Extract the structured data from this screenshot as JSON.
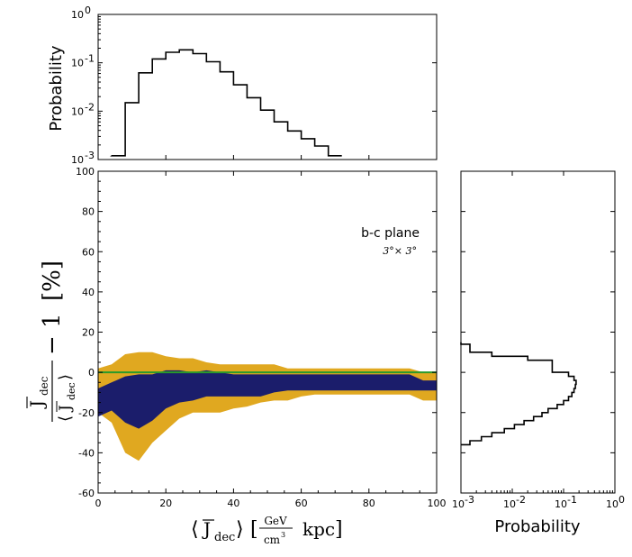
{
  "chart_data": [
    {
      "type": "histogram",
      "name": "top-histogram",
      "ylabel": "Probability",
      "yscale": "log",
      "xlim": [
        0,
        100
      ],
      "ylim": [
        0.001,
        1
      ],
      "ytick_labels": [
        {
          "base": "10",
          "exp": "-3",
          "value": 0.001
        },
        {
          "base": "10",
          "exp": "-2",
          "value": 0.01
        },
        {
          "base": "10",
          "exp": "-1",
          "value": 0.1
        },
        {
          "base": "10",
          "exp": "0",
          "value": 1
        }
      ],
      "bin_edges": [
        4,
        8,
        12,
        16,
        20,
        24,
        28,
        32,
        36,
        40,
        44,
        48,
        52,
        56,
        60,
        64,
        68,
        72
      ],
      "values": [
        0.0012,
        0.015,
        0.062,
        0.12,
        0.165,
        0.185,
        0.155,
        0.105,
        0.065,
        0.035,
        0.019,
        0.0105,
        0.006,
        0.0039,
        0.0027,
        0.0019,
        0.0012
      ]
    },
    {
      "type": "area",
      "name": "main-bands",
      "xlim": [
        0,
        100
      ],
      "ylim": [
        -60,
        100
      ],
      "xticks": [
        0,
        20,
        40,
        60,
        80,
        100
      ],
      "yticks": [
        -60,
        -40,
        -20,
        0,
        20,
        40,
        60,
        80,
        100
      ],
      "annotation": "b-c plane",
      "annotation_sub": "3°× 3°",
      "xlabel_parts": {
        "bracket_open": "⟨",
        "J": "J",
        "sub": "dec",
        "bracket_close": "⟩",
        "unit_num": "GeV",
        "unit_den": "cm",
        "unit_den_exp": "3",
        "unit": "kpc"
      },
      "ylabel_parts": {
        "J": "J",
        "sub": "dec",
        "minus_one": "− 1",
        "percent": "[%]"
      },
      "colors": {
        "outer": "#e0a820",
        "inner": "#1b1d6b",
        "line": "#2a9a2a",
        "mid": "#1d5a48"
      },
      "outer_band": {
        "x": [
          0,
          4,
          8,
          12,
          16,
          20,
          24,
          28,
          32,
          36,
          40,
          44,
          48,
          52,
          56,
          60,
          64,
          68,
          72,
          76,
          80,
          84,
          88,
          92,
          96,
          100
        ],
        "upper": [
          2,
          4,
          9,
          10,
          10,
          8,
          7,
          7,
          5,
          4,
          4,
          4,
          4,
          4,
          2,
          2,
          2,
          2,
          2,
          2,
          2,
          2,
          2,
          2,
          0,
          0
        ],
        "lower": [
          -20,
          -25,
          -40,
          -44,
          -35,
          -29,
          -23,
          -20,
          -20,
          -20,
          -18,
          -17,
          -15,
          -14,
          -14,
          -12,
          -11,
          -11,
          -11,
          -11,
          -11,
          -11,
          -11,
          -11,
          -14,
          -14
        ]
      },
      "inner_band": {
        "x": [
          0,
          4,
          8,
          12,
          16,
          20,
          24,
          28,
          32,
          36,
          40,
          44,
          48,
          52,
          56,
          60,
          64,
          68,
          72,
          76,
          80,
          84,
          88,
          92,
          96,
          100
        ],
        "upper": [
          -8,
          -5,
          -2,
          -1,
          -1,
          1,
          1,
          0,
          1,
          0,
          -1,
          -1,
          -1,
          -1,
          -1,
          -1,
          -1,
          -1,
          -1,
          -1,
          -1,
          -1,
          -1,
          -1,
          -4,
          -4
        ],
        "lower": [
          -22,
          -19,
          -25,
          -28,
          -24,
          -18,
          -15,
          -14,
          -12,
          -12,
          -12,
          -12,
          -12,
          -10,
          -9,
          -9,
          -9,
          -9,
          -9,
          -9,
          -9,
          -9,
          -9,
          -9,
          -9,
          -9
        ]
      },
      "zero_line_y": 0
    },
    {
      "type": "histogram",
      "name": "right-histogram",
      "orientation": "horizontal",
      "xlabel": "Probability",
      "xscale": "log",
      "xlim": [
        0.001,
        1
      ],
      "ylim": [
        -60,
        100
      ],
      "xtick_labels": [
        {
          "base": "10",
          "exp": "-3",
          "value": 0.001
        },
        {
          "base": "10",
          "exp": "-2",
          "value": 0.01
        },
        {
          "base": "10",
          "exp": "-1",
          "value": 0.1
        },
        {
          "base": "10",
          "exp": "0",
          "value": 1
        }
      ],
      "bin_edges": [
        -36,
        -34,
        -32,
        -30,
        -28,
        -26,
        -24,
        -22,
        -20,
        -18,
        -16,
        -14,
        -12,
        -10,
        -8,
        -6,
        -4,
        -2,
        0,
        6,
        8,
        10,
        14,
        15
      ],
      "values": [
        0.0015,
        0.0025,
        0.004,
        0.007,
        0.011,
        0.017,
        0.026,
        0.038,
        0.05,
        0.075,
        0.1,
        0.125,
        0.145,
        0.16,
        0.17,
        0.175,
        0.16,
        0.125,
        0.06,
        0.02,
        0.004,
        0.0015,
        0.001
      ]
    }
  ]
}
